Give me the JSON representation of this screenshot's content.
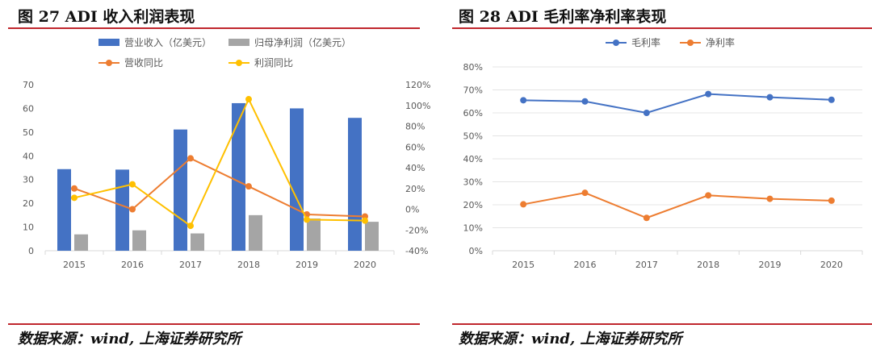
{
  "left": {
    "title": "图 27 ADI 收入利润表现",
    "source": "数据来源：wind, 上海证券研究所"
  },
  "right": {
    "title": "图 28 ADI 毛利率净利率表现",
    "source": "数据来源：wind, 上海证券研究所"
  },
  "chart_data": [
    {
      "type": "bar",
      "title": "图 27 ADI 收入利润表现",
      "categories": [
        "2015",
        "2016",
        "2017",
        "2018",
        "2019",
        "2020"
      ],
      "y_left": {
        "min": 0,
        "max": 70,
        "step": 10,
        "ticks": [
          "0",
          "10",
          "20",
          "30",
          "40",
          "50",
          "60",
          "70"
        ]
      },
      "y_right": {
        "min": -40,
        "max": 120,
        "step": 20,
        "ticks": [
          "-40%",
          "-20%",
          "0%",
          "20%",
          "40%",
          "60%",
          "80%",
          "100%",
          "120%"
        ]
      },
      "series": [
        {
          "name": "营业收入（亿美元）",
          "kind": "bar",
          "axis": "left",
          "color": "#4472c4",
          "values": [
            34.4,
            34.2,
            51.1,
            62.2,
            60.0,
            56.0
          ]
        },
        {
          "name": "归母净利润（亿美元）",
          "kind": "bar",
          "axis": "left",
          "color": "#a5a5a5",
          "values": [
            6.9,
            8.6,
            7.3,
            15.0,
            13.6,
            12.2
          ]
        },
        {
          "name": "营收同比",
          "kind": "line",
          "axis": "right",
          "color": "#ed7d31",
          "values": [
            20,
            0,
            49,
            22,
            -5,
            -7
          ]
        },
        {
          "name": "利润同比",
          "kind": "line",
          "axis": "right",
          "color": "#ffc000",
          "values": [
            11,
            24,
            -16,
            106,
            -10,
            -11
          ]
        }
      ],
      "legend": "top"
    },
    {
      "type": "line",
      "title": "图 28 ADI 毛利率净利率表现",
      "categories": [
        "2015",
        "2016",
        "2017",
        "2018",
        "2019",
        "2020"
      ],
      "y": {
        "min": 0,
        "max": 80,
        "step": 10,
        "ticks": [
          "0%",
          "10%",
          "20%",
          "30%",
          "40%",
          "50%",
          "60%",
          "70%",
          "80%"
        ]
      },
      "series": [
        {
          "name": "毛利率",
          "color": "#4472c4",
          "values": [
            65.5,
            65.0,
            60.0,
            68.2,
            66.8,
            65.7
          ]
        },
        {
          "name": "净利率",
          "color": "#ed7d31",
          "values": [
            20.2,
            25.2,
            14.3,
            24.1,
            22.6,
            21.8
          ]
        }
      ],
      "legend": "top"
    }
  ]
}
